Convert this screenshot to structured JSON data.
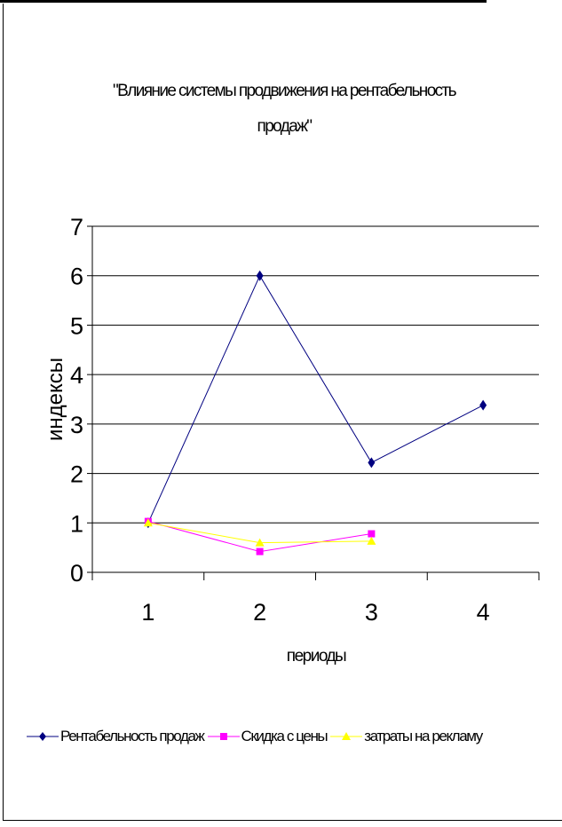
{
  "chart_data": {
    "type": "line",
    "title_line1": "\"Влияние системы продвижения на рентабельность",
    "title_line2": "продаж\"",
    "xlabel": "периоды",
    "ylabel": "индексы",
    "categories": [
      "1",
      "2",
      "3",
      "4"
    ],
    "y_ticks": [
      "0",
      "1",
      "2",
      "3",
      "4",
      "5",
      "6",
      "7"
    ],
    "ylim": [
      0,
      7
    ],
    "grid": true,
    "legend_position": "bottom",
    "series": [
      {
        "name": "Рентабельность продаж",
        "values": [
          1.0,
          6.0,
          2.22,
          3.38
        ],
        "color": "#000080",
        "marker": "diamond"
      },
      {
        "name": "Скидка с цены",
        "values": [
          1.03,
          0.42,
          0.78,
          null
        ],
        "color": "#FF00FF",
        "marker": "square"
      },
      {
        "name": "затраты на рекламу",
        "values": [
          1.0,
          0.6,
          0.63,
          null
        ],
        "color": "#FFFF00",
        "marker": "triangle"
      }
    ]
  }
}
